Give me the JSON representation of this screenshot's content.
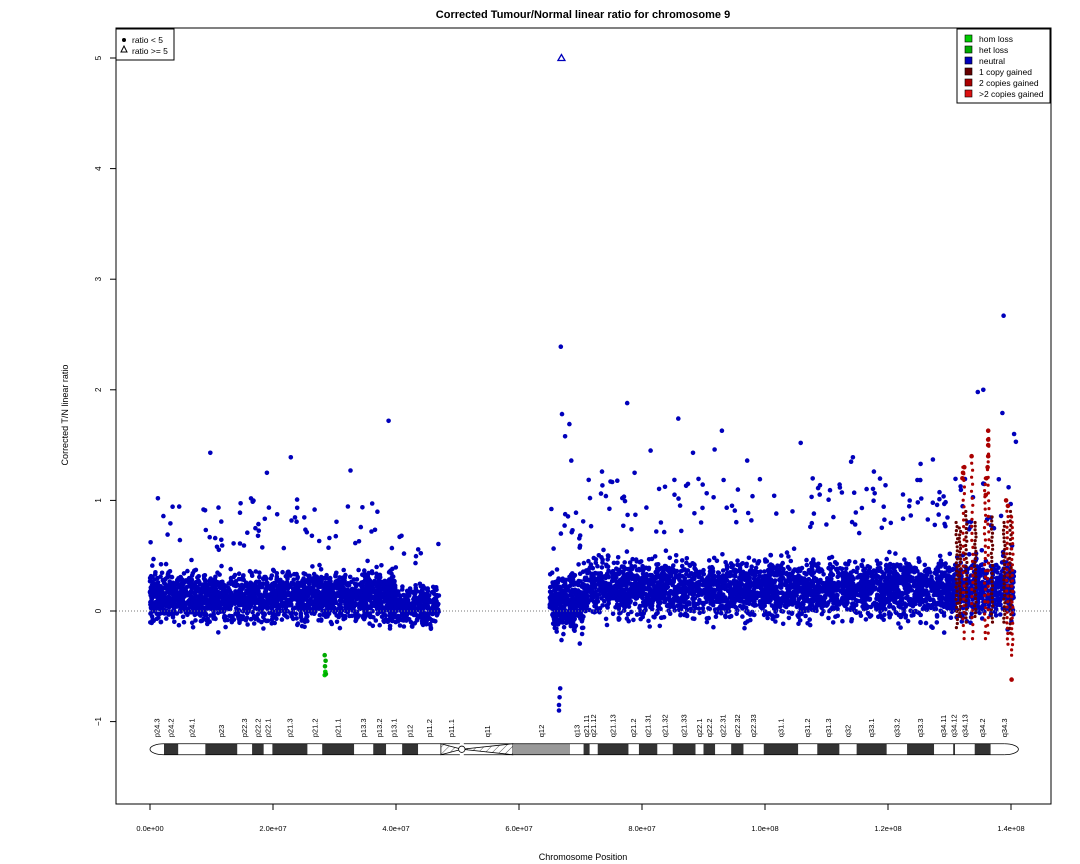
{
  "chart_data": {
    "type": "scatter",
    "title": "Corrected Tumour/Normal linear ratio for chromosome  9",
    "xlabel": "Chromosome Position",
    "ylabel": "Corrected T/N linear ratio",
    "xlim": [
      -15000000,
      145000000
    ],
    "ylim": [
      -1.8,
      5.25
    ],
    "x_ticks": [
      {
        "value": 0,
        "label": "0.0e+00"
      },
      {
        "value": 20000000,
        "label": "2.0e+07"
      },
      {
        "value": 40000000,
        "label": "4.0e+07"
      },
      {
        "value": 60000000,
        "label": "6.0e+07"
      },
      {
        "value": 80000000,
        "label": "8.0e+07"
      },
      {
        "value": 100000000,
        "label": "1.0e+08"
      },
      {
        "value": 120000000,
        "label": "1.2e+08"
      },
      {
        "value": 140000000,
        "label": "1.4e+08"
      }
    ],
    "y_ticks": [
      {
        "value": -1,
        "label": "−1"
      },
      {
        "value": 0,
        "label": "0"
      },
      {
        "value": 1,
        "label": "1"
      },
      {
        "value": 2,
        "label": "2"
      },
      {
        "value": 3,
        "label": "3"
      },
      {
        "value": 4,
        "label": "4"
      },
      {
        "value": 5,
        "label": "5"
      }
    ],
    "reference_line_y": 0,
    "shape_legend": {
      "placement": "top-left",
      "items": [
        {
          "symbol": "dot",
          "label": "ratio < 5"
        },
        {
          "symbol": "triangle",
          "label": "ratio >= 5"
        }
      ]
    },
    "color_legend": {
      "placement": "top-right",
      "items": [
        {
          "label": "hom loss",
          "color": "#00cc00"
        },
        {
          "label": "het loss",
          "color": "#00aa00"
        },
        {
          "label": "neutral",
          "color": "#0000bb"
        },
        {
          "label": "1 copy gained",
          "color": "#660000"
        },
        {
          "label": "2 copies gained",
          "color": "#aa0000"
        },
        {
          "label": ">2 copies gained",
          "color": "#dd1111"
        }
      ]
    },
    "point_clouds": [
      {
        "status": "neutral",
        "x_range": [
          0,
          40000000
        ],
        "band": [
          -0.3,
          0.55
        ],
        "n": 2200,
        "outlier_max": 1.05
      },
      {
        "status": "neutral",
        "x_range": [
          39000000,
          47000000
        ],
        "band": [
          -0.3,
          0.4
        ],
        "n": 350,
        "outlier_max": 0.7
      },
      {
        "status": "neutral",
        "x_range": [
          65000000,
          70500000
        ],
        "band": [
          -0.4,
          0.55
        ],
        "n": 400,
        "outlier_max": 1.0
      },
      {
        "status": "neutral",
        "x_range": [
          70500000,
          140500000
        ],
        "band": [
          -0.3,
          0.7
        ],
        "n": 3600,
        "outlier_max": 1.2
      }
    ],
    "points": [
      {
        "x": 66900000,
        "y": 5.0,
        "status": "neutral",
        "shape": "triangle"
      },
      {
        "x": 140000000,
        "y": 5.0,
        "status": "2 copies gained",
        "shape": "triangle"
      },
      {
        "x": 66800000,
        "y": 2.39,
        "status": "neutral"
      },
      {
        "x": 138800000,
        "y": 2.67,
        "status": "neutral"
      },
      {
        "x": 135500000,
        "y": 2.0,
        "status": "neutral"
      },
      {
        "x": 134600000,
        "y": 1.98,
        "status": "neutral"
      },
      {
        "x": 77600000,
        "y": 1.88,
        "status": "neutral"
      },
      {
        "x": 38800000,
        "y": 1.72,
        "status": "neutral"
      },
      {
        "x": 85900000,
        "y": 1.74,
        "status": "neutral"
      },
      {
        "x": 67000000,
        "y": 1.78,
        "status": "neutral"
      },
      {
        "x": 138600000,
        "y": 1.79,
        "status": "neutral"
      },
      {
        "x": 68200000,
        "y": 1.69,
        "status": "neutral"
      },
      {
        "x": 93000000,
        "y": 1.63,
        "status": "neutral"
      },
      {
        "x": 140500000,
        "y": 1.6,
        "status": "neutral"
      },
      {
        "x": 140800000,
        "y": 1.53,
        "status": "neutral"
      },
      {
        "x": 105800000,
        "y": 1.52,
        "status": "neutral"
      },
      {
        "x": 91800000,
        "y": 1.46,
        "status": "neutral"
      },
      {
        "x": 9800000,
        "y": 1.43,
        "status": "neutral"
      },
      {
        "x": 81400000,
        "y": 1.45,
        "status": "neutral"
      },
      {
        "x": 88300000,
        "y": 1.43,
        "status": "neutral"
      },
      {
        "x": 22900000,
        "y": 1.39,
        "status": "neutral"
      },
      {
        "x": 114300000,
        "y": 1.39,
        "status": "neutral"
      },
      {
        "x": 114000000,
        "y": 1.35,
        "status": "neutral"
      },
      {
        "x": 97100000,
        "y": 1.36,
        "status": "neutral"
      },
      {
        "x": 68500000,
        "y": 1.36,
        "status": "neutral"
      },
      {
        "x": 32600000,
        "y": 1.27,
        "status": "neutral"
      },
      {
        "x": 19000000,
        "y": 1.25,
        "status": "neutral"
      },
      {
        "x": 117700000,
        "y": 1.26,
        "status": "neutral"
      },
      {
        "x": 127300000,
        "y": 1.37,
        "status": "neutral"
      },
      {
        "x": 125300000,
        "y": 1.33,
        "status": "neutral"
      },
      {
        "x": 78800000,
        "y": 1.25,
        "status": "neutral"
      },
      {
        "x": 73500000,
        "y": 1.26,
        "status": "neutral"
      },
      {
        "x": 67500000,
        "y": 1.58,
        "status": "neutral"
      },
      {
        "x": 66500000,
        "y": -0.9,
        "status": "neutral"
      },
      {
        "x": 66500000,
        "y": -0.85,
        "status": "neutral"
      },
      {
        "x": 66600000,
        "y": -0.78,
        "status": "neutral"
      },
      {
        "x": 66700000,
        "y": -0.7,
        "status": "neutral"
      },
      {
        "x": 140100000,
        "y": -0.62,
        "status": "2 copies gained"
      },
      {
        "x": 28400000,
        "y": -0.58,
        "status": "hom loss"
      },
      {
        "x": 28500000,
        "y": -0.55,
        "status": "hom loss"
      },
      {
        "x": 28600000,
        "y": -0.57,
        "status": "het loss"
      },
      {
        "x": 28450000,
        "y": -0.5,
        "status": "het loss"
      },
      {
        "x": 28550000,
        "y": -0.45,
        "status": "het loss"
      },
      {
        "x": 28400000,
        "y": -0.4,
        "status": "het loss"
      },
      {
        "x": 136300000,
        "y": 1.63,
        "status": "2 copies gained"
      },
      {
        "x": 136300000,
        "y": 1.55,
        "status": "2 copies gained"
      },
      {
        "x": 136300000,
        "y": 1.5,
        "status": "2 copies gained"
      },
      {
        "x": 136300000,
        "y": 1.4,
        "status": "2 copies gained"
      },
      {
        "x": 136200000,
        "y": 1.3,
        "status": "2 copies gained"
      },
      {
        "x": 132400000,
        "y": 1.3,
        "status": "2 copies gained"
      },
      {
        "x": 132200000,
        "y": 1.25,
        "status": "2 copies gained"
      },
      {
        "x": 132100000,
        "y": 1.2,
        "status": "2 copies gained"
      },
      {
        "x": 133600000,
        "y": 1.4,
        "status": "2 copies gained"
      },
      {
        "x": 136000000,
        "y": 1.2,
        "status": "2 copies gained"
      },
      {
        "x": 135900000,
        "y": 1.05,
        "status": "2 copies gained"
      },
      {
        "x": 139200000,
        "y": 1.0,
        "status": "2 copies gained"
      },
      {
        "x": 139500000,
        "y": 0.95,
        "status": "2 copies gained"
      }
    ],
    "gain_stripes": [
      {
        "x": 131200000,
        "y_min": -0.15,
        "y_max": 0.8,
        "status": "1 copy gained"
      },
      {
        "x": 131700000,
        "y_min": -0.05,
        "y_max": 0.75,
        "status": "1 copy gained"
      },
      {
        "x": 132300000,
        "y_min": -0.25,
        "y_max": 1.3,
        "status": "2 copies gained"
      },
      {
        "x": 132700000,
        "y_min": -0.1,
        "y_max": 0.9,
        "status": "1 copy gained"
      },
      {
        "x": 133700000,
        "y_min": -0.25,
        "y_max": 1.4,
        "status": "2 copies gained"
      },
      {
        "x": 134200000,
        "y_min": -0.05,
        "y_max": 0.8,
        "status": "1 copy gained"
      },
      {
        "x": 135800000,
        "y_min": -0.25,
        "y_max": 1.2,
        "status": "2 copies gained"
      },
      {
        "x": 136300000,
        "y_min": -0.2,
        "y_max": 1.63,
        "status": "2 copies gained"
      },
      {
        "x": 136900000,
        "y_min": -0.1,
        "y_max": 0.85,
        "status": "1 copy gained"
      },
      {
        "x": 138900000,
        "y_min": -0.1,
        "y_max": 0.8,
        "status": "1 copy gained"
      },
      {
        "x": 139400000,
        "y_min": -0.3,
        "y_max": 0.95,
        "status": "2 copies gained"
      },
      {
        "x": 139900000,
        "y_min": -0.2,
        "y_max": 0.9,
        "status": "1 copy gained"
      },
      {
        "x": 140200000,
        "y_min": -0.4,
        "y_max": 0.85,
        "status": "2 copies gained"
      }
    ],
    "ideogram": {
      "y": -1.25,
      "bands": [
        {
          "name": "p24.3",
          "start": 0,
          "end": 2200000,
          "stain": "gneg"
        },
        {
          "name": "p24.2",
          "start": 2200000,
          "end": 4600000,
          "stain": "gpos"
        },
        {
          "name": "p24.1",
          "start": 4600000,
          "end": 9000000,
          "stain": "gneg"
        },
        {
          "name": "p23",
          "start": 9000000,
          "end": 14200000,
          "stain": "gpos"
        },
        {
          "name": "p22.3",
          "start": 14200000,
          "end": 16600000,
          "stain": "gneg"
        },
        {
          "name": "p22.2",
          "start": 16600000,
          "end": 18500000,
          "stain": "gpos"
        },
        {
          "name": "p22.1",
          "start": 18500000,
          "end": 19900000,
          "stain": "gneg"
        },
        {
          "name": "p21.3",
          "start": 19900000,
          "end": 25600000,
          "stain": "gpos"
        },
        {
          "name": "p21.2",
          "start": 25600000,
          "end": 28000000,
          "stain": "gneg"
        },
        {
          "name": "p21.1",
          "start": 28000000,
          "end": 33200000,
          "stain": "gpos"
        },
        {
          "name": "p13.3",
          "start": 33200000,
          "end": 36300000,
          "stain": "gneg"
        },
        {
          "name": "p13.2",
          "start": 36300000,
          "end": 38400000,
          "stain": "gpos"
        },
        {
          "name": "p13.1",
          "start": 38400000,
          "end": 41000000,
          "stain": "gneg"
        },
        {
          "name": "p12",
          "start": 41000000,
          "end": 43600000,
          "stain": "gpos"
        },
        {
          "name": "p11.2",
          "start": 43600000,
          "end": 47300000,
          "stain": "gneg"
        },
        {
          "name": "p11.1",
          "start": 47300000,
          "end": 50700000,
          "stain": "stalk"
        },
        {
          "name": "q11",
          "start": 50700000,
          "end": 59000000,
          "stain": "stalk"
        },
        {
          "name": "q12",
          "start": 59000000,
          "end": 68300000,
          "stain": "gvar"
        },
        {
          "name": "q13",
          "start": 68300000,
          "end": 70500000,
          "stain": "gneg"
        },
        {
          "name": "q21.11",
          "start": 70500000,
          "end": 71500000,
          "stain": "gpos"
        },
        {
          "name": "q21.12",
          "start": 71500000,
          "end": 72800000,
          "stain": "gneg"
        },
        {
          "name": "q21.13",
          "start": 72800000,
          "end": 77800000,
          "stain": "gpos"
        },
        {
          "name": "q21.2",
          "start": 77800000,
          "end": 79500000,
          "stain": "gneg"
        },
        {
          "name": "q21.31",
          "start": 79500000,
          "end": 82500000,
          "stain": "gpos"
        },
        {
          "name": "q21.32",
          "start": 82500000,
          "end": 85000000,
          "stain": "gneg"
        },
        {
          "name": "q21.33",
          "start": 85000000,
          "end": 88700000,
          "stain": "gpos"
        },
        {
          "name": "q22.1",
          "start": 88700000,
          "end": 90000000,
          "stain": "gneg"
        },
        {
          "name": "q22.2",
          "start": 90000000,
          "end": 91900000,
          "stain": "gpos"
        },
        {
          "name": "q22.31",
          "start": 91900000,
          "end": 94500000,
          "stain": "gneg"
        },
        {
          "name": "q22.32",
          "start": 94500000,
          "end": 96500000,
          "stain": "gpos"
        },
        {
          "name": "q22.33",
          "start": 96500000,
          "end": 99800000,
          "stain": "gneg"
        },
        {
          "name": "q31.1",
          "start": 99800000,
          "end": 105400000,
          "stain": "gpos"
        },
        {
          "name": "q31.2",
          "start": 105400000,
          "end": 108500000,
          "stain": "gneg"
        },
        {
          "name": "q31.3",
          "start": 108500000,
          "end": 112100000,
          "stain": "gpos"
        },
        {
          "name": "q32",
          "start": 112100000,
          "end": 114900000,
          "stain": "gneg"
        },
        {
          "name": "q33.1",
          "start": 114900000,
          "end": 119800000,
          "stain": "gpos"
        },
        {
          "name": "q33.2",
          "start": 119800000,
          "end": 123100000,
          "stain": "gneg"
        },
        {
          "name": "q33.3",
          "start": 123100000,
          "end": 127500000,
          "stain": "gpos"
        },
        {
          "name": "q34.11",
          "start": 127500000,
          "end": 130600000,
          "stain": "gneg"
        },
        {
          "name": "q34.12",
          "start": 130600000,
          "end": 130900000,
          "stain": "gpos"
        },
        {
          "name": "q34.13",
          "start": 130900000,
          "end": 134100000,
          "stain": "gneg"
        },
        {
          "name": "q34.2",
          "start": 134100000,
          "end": 136700000,
          "stain": "gpos"
        },
        {
          "name": "q34.3",
          "start": 136700000,
          "end": 141200000,
          "stain": "gneg"
        }
      ]
    }
  }
}
